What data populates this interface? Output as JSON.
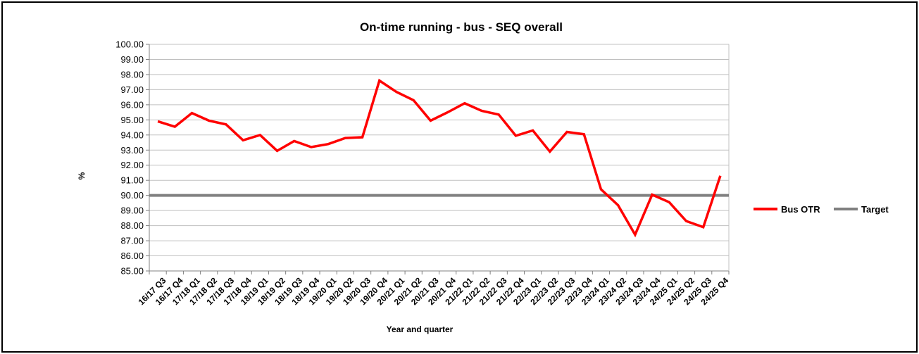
{
  "chart_data": {
    "type": "line",
    "title": "On-time running - bus - SEQ overall",
    "xlabel": "Year and quarter",
    "ylabel": "%",
    "ylim": [
      85,
      100
    ],
    "y_ticks": [
      "85.00",
      "86.00",
      "87.00",
      "88.00",
      "89.00",
      "90.00",
      "91.00",
      "92.00",
      "93.00",
      "94.00",
      "95.00",
      "96.00",
      "97.00",
      "98.00",
      "99.00",
      "100.00"
    ],
    "grid": true,
    "legend_position": "right",
    "categories": [
      "16/17 Q3",
      "16/17 Q4",
      "17/18 Q1",
      "17/18 Q2",
      "17/18 Q3",
      "17/18 Q4",
      "18/19 Q1",
      "18/19 Q2",
      "18/19 Q3",
      "18/19 Q4",
      "19/20 Q1",
      "19/20 Q2",
      "19/20 Q3",
      "19/20 Q4",
      "20/21 Q1",
      "20/21 Q2",
      "20/21 Q3",
      "20/21 Q4",
      "21/22 Q1",
      "21/22 Q2",
      "21/22 Q3",
      "21/22 Q4",
      "22/23 Q1",
      "22/23 Q2",
      "22/23 Q3",
      "22/23 Q4",
      "23/24 Q1",
      "23/24 Q2",
      "23/24 Q3",
      "23/24 Q4",
      "24/25 Q1",
      "24/25 Q2",
      "24/25 Q3",
      "24/25 Q4"
    ],
    "series": [
      {
        "name": "Bus OTR",
        "color": "#ff0000",
        "values": [
          94.9,
          94.55,
          95.45,
          94.95,
          94.7,
          93.65,
          94.0,
          92.95,
          93.6,
          93.2,
          93.4,
          93.8,
          93.85,
          97.6,
          96.85,
          96.3,
          94.95,
          95.5,
          96.1,
          95.6,
          95.35,
          93.95,
          94.3,
          92.9,
          94.2,
          94.05,
          90.4,
          89.35,
          87.4,
          90.05,
          89.55,
          88.3,
          87.9,
          91.3
        ]
      },
      {
        "name": "Target",
        "color": "#808080",
        "values": [
          90,
          90,
          90,
          90,
          90,
          90,
          90,
          90,
          90,
          90,
          90,
          90,
          90,
          90,
          90,
          90,
          90,
          90,
          90,
          90,
          90,
          90,
          90,
          90,
          90,
          90,
          90,
          90,
          90,
          90,
          90,
          90,
          90,
          90
        ]
      }
    ]
  }
}
